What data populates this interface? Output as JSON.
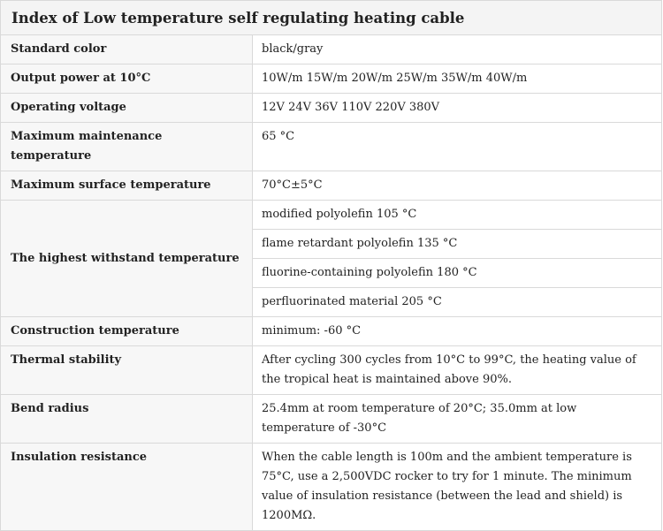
{
  "title": "Index of Low temperature self regulating heating cable",
  "rows": [
    {
      "label": "Standard color",
      "value": "black/gray"
    },
    {
      "label": "Output power at 10°C",
      "value": "10W/m 15W/m 20W/m 25W/m 35W/m 40W/m"
    },
    {
      "label": "Operating voltage",
      "value": "12V 24V 36V 110V 220V 380V"
    },
    {
      "label": "Maximum maintenance temperature",
      "value": "65 °C"
    },
    {
      "label": "Maximum surface temperature",
      "value": "70°C±5°C"
    },
    {
      "label": "The highest withstand temperature",
      "values": [
        "modified polyolefin 105 °C",
        "flame retardant polyolefin 135 °C",
        "fluorine-containing polyolefin 180 °C",
        "perfluorinated material 205 °C"
      ]
    },
    {
      "label": "Construction temperature",
      "value": "minimum: -60 °C"
    },
    {
      "label": "Thermal stability",
      "value": "After cycling 300 cycles from 10°C to 99°C, the heating value of the tropical heat is maintained above 90%."
    },
    {
      "label": "Bend radius",
      "value": "25.4mm at room temperature of 20°C; 35.0mm at low temperature of -30°C"
    },
    {
      "label": "Insulation resistance",
      "value": "When the cable length is 100m and the ambient temperature is 75°C, use a 2,500VDC rocker to try for 1 minute. The minimum value of insulation resistance (between the lead and shield) is 1200MΩ."
    }
  ]
}
